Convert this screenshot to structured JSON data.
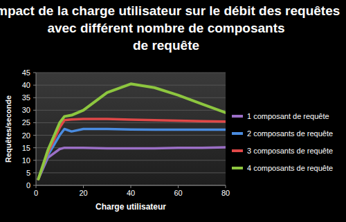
{
  "chart_data": {
    "type": "line",
    "title": "Impact de la charge utilisateur sur le débit des requêtes\navec différent nombre de composants\nde requête",
    "x_label": "Charge utilisateur",
    "y_label": "Requêtes/seconde",
    "x": [
      1,
      5,
      10,
      12,
      15,
      20,
      30,
      40,
      50,
      60,
      70,
      80
    ],
    "series": [
      {
        "name": "1 composant de requête",
        "color": "#9b6fc6",
        "values": [
          2.5,
          11,
          14.5,
          15,
          15,
          15,
          14.8,
          14.8,
          14.8,
          15,
          15,
          15.2
        ]
      },
      {
        "name": "2 composants de requête",
        "color": "#4a8ce0",
        "values": [
          2.5,
          12,
          20,
          22.5,
          21.5,
          22.5,
          22.5,
          22.3,
          22.2,
          22.2,
          22.2,
          22.2
        ]
      },
      {
        "name": "3 composants de requête",
        "color": "#e04848",
        "values": [
          2.5,
          13,
          23,
          26,
          26.3,
          26.5,
          26.5,
          26.2,
          26,
          25.8,
          25.6,
          25.5
        ]
      },
      {
        "name": "4 composants de requête",
        "color": "#8dc63f",
        "values": [
          2.5,
          14,
          25,
          27.5,
          28,
          30,
          37,
          40.5,
          39,
          36,
          32.5,
          29
        ]
      }
    ],
    "xlim": [
      0,
      80
    ],
    "xticks": [
      0,
      20,
      40,
      60,
      80
    ],
    "ylim": [
      0,
      45
    ],
    "yticks": [
      0,
      5,
      10,
      15,
      20,
      25,
      30,
      35,
      40,
      45
    ],
    "grid": true,
    "legend": "right"
  }
}
